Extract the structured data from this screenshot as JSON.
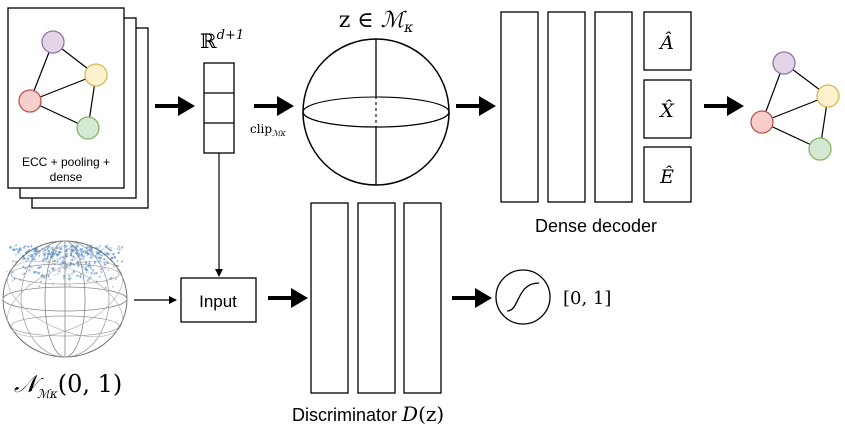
{
  "encoder": {
    "label_line1": "ECC + pooling +",
    "label_line2": "dense"
  },
  "latent": {
    "space_label_base": "ℝ",
    "space_label_sup": "d+1",
    "clip_label": "clip",
    "clip_sub": "ℳκ"
  },
  "manifold": {
    "title_z": "z ∈ ",
    "title_m": "ℳ",
    "title_kappa": "κ"
  },
  "decoder": {
    "out_a": "Â",
    "out_x": "X̂",
    "out_e": "Ê",
    "label": "Dense decoder"
  },
  "prior": {
    "n_symbol": "𝒩",
    "n_sub": "ℳκ",
    "n_args": "(0, 1)"
  },
  "discriminator": {
    "input_label": "Input",
    "label_text": "Discriminator ",
    "label_d": "D",
    "label_z": "(z)",
    "output_range": "[0, 1]"
  },
  "colors": {
    "node_purple": "#e1d5e7",
    "node_purple_stroke": "#9673a6",
    "node_yellow": "#fff2cc",
    "node_yellow_stroke": "#d6b656",
    "node_red": "#f8cecc",
    "node_red_stroke": "#b85450",
    "node_green": "#d5e8d4",
    "node_green_stroke": "#82b366",
    "prior_points": "#5b8fc9"
  }
}
